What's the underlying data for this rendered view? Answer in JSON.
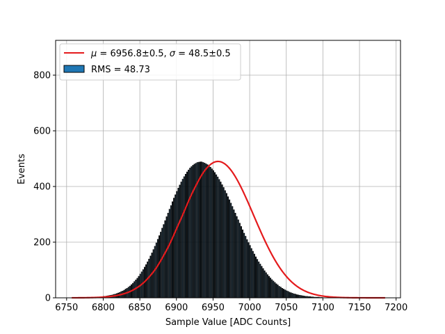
{
  "chart_data": {
    "type": "bar",
    "title": "",
    "xlabel": "Sample Value [ADC Counts]",
    "ylabel": "Events",
    "xlim": [
      6735,
      7206
    ],
    "ylim": [
      0,
      925
    ],
    "xticks": [
      6750,
      6800,
      6850,
      6900,
      6950,
      7000,
      7050,
      7100,
      7150,
      7200
    ],
    "yticks": [
      0,
      200,
      400,
      600,
      800
    ],
    "grid": true,
    "legend_position": "top-left",
    "histogram": {
      "label": "RMS = 48.73",
      "bin_width": 1,
      "fill_color": "#1f77b4",
      "edge_color": "#000000",
      "bins": [
        [
          6800,
          5
        ],
        [
          6802,
          5
        ],
        [
          6804,
          6
        ],
        [
          6806,
          7
        ],
        [
          6808,
          8
        ],
        [
          6810,
          9
        ],
        [
          6812,
          10
        ],
        [
          6814,
          12
        ],
        [
          6816,
          13
        ],
        [
          6818,
          15
        ],
        [
          6820,
          17
        ],
        [
          6822,
          19
        ],
        [
          6824,
          22
        ],
        [
          6826,
          24
        ],
        [
          6828,
          27
        ],
        [
          6830,
          31
        ],
        [
          6832,
          34
        ],
        [
          6834,
          38
        ],
        [
          6836,
          42
        ],
        [
          6838,
          47
        ],
        [
          6840,
          52
        ],
        [
          6842,
          58
        ],
        [
          6844,
          64
        ],
        [
          6846,
          70
        ],
        [
          6848,
          77
        ],
        [
          6850,
          85
        ],
        [
          6852,
          93
        ],
        [
          6854,
          101
        ],
        [
          6856,
          110
        ],
        [
          6858,
          119
        ],
        [
          6860,
          129
        ],
        [
          6862,
          139
        ],
        [
          6864,
          150
        ],
        [
          6866,
          161
        ],
        [
          6868,
          173
        ],
        [
          6870,
          185
        ],
        [
          6872,
          197
        ],
        [
          6874,
          210
        ],
        [
          6876,
          223
        ],
        [
          6878,
          236
        ],
        [
          6880,
          250
        ],
        [
          6882,
          263
        ],
        [
          6884,
          277
        ],
        [
          6886,
          291
        ],
        [
          6888,
          304
        ],
        [
          6890,
          318
        ],
        [
          6892,
          331
        ],
        [
          6894,
          345
        ],
        [
          6896,
          358
        ],
        [
          6898,
          370
        ],
        [
          6900,
          382
        ],
        [
          6902,
          394
        ],
        [
          6904,
          405
        ],
        [
          6906,
          416
        ],
        [
          6908,
          426
        ],
        [
          6910,
          435
        ],
        [
          6912,
          444
        ],
        [
          6914,
          452
        ],
        [
          6916,
          459
        ],
        [
          6918,
          466
        ],
        [
          6920,
          471
        ],
        [
          6922,
          476
        ],
        [
          6924,
          480
        ],
        [
          6926,
          483
        ],
        [
          6928,
          486
        ],
        [
          6930,
          487
        ],
        [
          6932,
          488
        ],
        [
          6934,
          488
        ],
        [
          6936,
          486
        ],
        [
          6938,
          484
        ],
        [
          6940,
          481
        ],
        [
          6942,
          478
        ],
        [
          6944,
          474
        ],
        [
          6946,
          469
        ],
        [
          6948,
          463
        ],
        [
          6950,
          457
        ],
        [
          6952,
          450
        ],
        [
          6954,
          442
        ],
        [
          6956,
          434
        ],
        [
          6958,
          425
        ],
        [
          6960,
          416
        ],
        [
          6962,
          406
        ],
        [
          6964,
          396
        ],
        [
          6966,
          385
        ],
        [
          6968,
          375
        ],
        [
          6970,
          363
        ],
        [
          6972,
          352
        ],
        [
          6974,
          340
        ],
        [
          6976,
          328
        ],
        [
          6978,
          316
        ],
        [
          6980,
          304
        ],
        [
          6982,
          292
        ],
        [
          6984,
          280
        ],
        [
          6986,
          268
        ],
        [
          6988,
          256
        ],
        [
          6990,
          244
        ],
        [
          6992,
          232
        ],
        [
          6994,
          221
        ],
        [
          6996,
          209
        ],
        [
          6998,
          198
        ],
        [
          7000,
          188
        ],
        [
          7002,
          177
        ],
        [
          7004,
          167
        ],
        [
          7006,
          157
        ],
        [
          7008,
          147
        ],
        [
          7010,
          138
        ],
        [
          7012,
          129
        ],
        [
          7014,
          121
        ],
        [
          7016,
          113
        ],
        [
          7018,
          105
        ],
        [
          7020,
          97
        ],
        [
          7022,
          90
        ],
        [
          7024,
          83
        ],
        [
          7026,
          77
        ],
        [
          7028,
          71
        ],
        [
          7030,
          65
        ],
        [
          7032,
          60
        ],
        [
          7034,
          55
        ],
        [
          7036,
          50
        ],
        [
          7038,
          46
        ],
        [
          7040,
          41
        ],
        [
          7042,
          38
        ],
        [
          7044,
          34
        ],
        [
          7046,
          31
        ],
        [
          7048,
          28
        ],
        [
          7050,
          25
        ],
        [
          7052,
          23
        ],
        [
          7054,
          20
        ],
        [
          7056,
          18
        ],
        [
          7058,
          16
        ],
        [
          7060,
          14
        ],
        [
          7062,
          13
        ],
        [
          7064,
          11
        ],
        [
          7066,
          10
        ],
        [
          7068,
          9
        ],
        [
          7070,
          8
        ],
        [
          7072,
          7
        ],
        [
          7074,
          6
        ],
        [
          7076,
          5
        ],
        [
          7078,
          5
        ],
        [
          7080,
          4
        ],
        [
          7082,
          4
        ],
        [
          7084,
          3
        ],
        [
          7086,
          3
        ],
        [
          7088,
          2
        ],
        [
          7090,
          2
        ],
        [
          7092,
          2
        ],
        [
          7094,
          2
        ],
        [
          7096,
          1
        ],
        [
          7098,
          1
        ]
      ]
    },
    "series": [
      {
        "name": "$\\mu = 6956.8\\pm0.5$, $\\sigma = 48.5\\pm0.5$",
        "type": "line",
        "color": "#e41a1c",
        "function": "gaussian",
        "mu": 6956.8,
        "sigma": 48.5,
        "amplitude": 490,
        "x_range": [
          6757,
          7185
        ]
      }
    ]
  },
  "colors": {
    "grid": "#b0b0b0",
    "axes": "#000000",
    "fit_line": "#e41a1c",
    "hist_fill": "#1f77b4",
    "hist_edge": "#000000"
  }
}
